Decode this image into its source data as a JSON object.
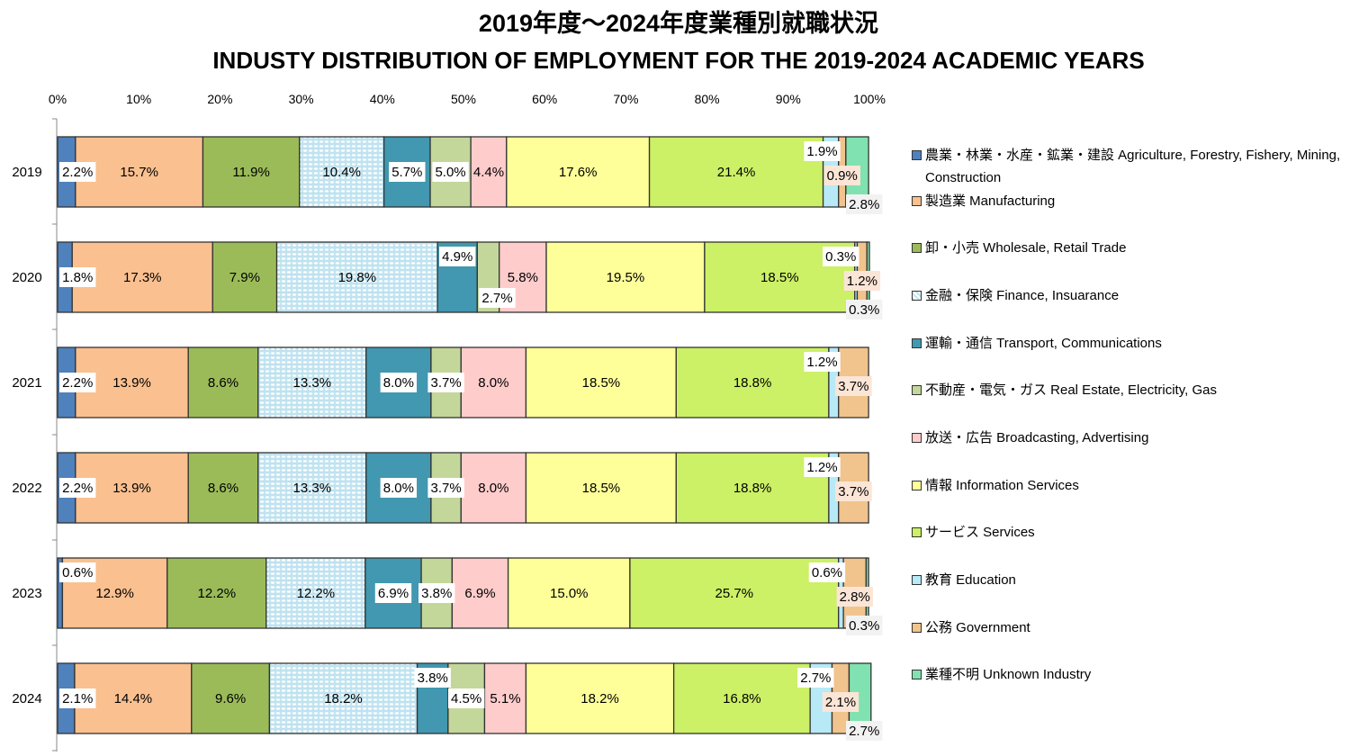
{
  "chart_data": {
    "type": "bar",
    "orientation": "horizontal-stacked-100",
    "title": "2019年度～2024年度業種別就職状況",
    "subtitle": "INDUSTY DISTRIBUTION OF EMPLOYMENT FOR THE 2019-2024 ACADEMIC YEARS",
    "xlim": [
      0,
      100
    ],
    "x_ticks": [
      "0%",
      "10%",
      "20%",
      "30%",
      "40%",
      "50%",
      "60%",
      "70%",
      "80%",
      "90%",
      "100%"
    ],
    "categories": [
      "2019",
      "2020",
      "2021",
      "2022",
      "2023",
      "2024"
    ],
    "legend_position": "right",
    "series": [
      {
        "name": "農業・林業・水産・鉱業・建設  Agriculture, Forestry, Fishery, Mining, Construction",
        "color": "#4f81bd",
        "values": [
          2.2,
          1.8,
          2.2,
          2.2,
          0.6,
          2.1
        ]
      },
      {
        "name": "製造業 Manufacturing",
        "color": "#fac090",
        "values": [
          15.7,
          17.3,
          13.9,
          13.9,
          12.9,
          14.4
        ]
      },
      {
        "name": "卸・小売 Wholesale, Retail Trade",
        "color": "#9bbb59",
        "values": [
          11.9,
          7.9,
          8.6,
          8.6,
          12.2,
          9.6
        ]
      },
      {
        "name": "金融・保険 Finance, Insuarance",
        "color": "#d4ebf5",
        "values": [
          10.4,
          19.8,
          13.3,
          13.3,
          12.2,
          18.2
        ]
      },
      {
        "name": "運輸・通信 Transport, Communications",
        "color": "#4198b0",
        "values": [
          5.7,
          4.9,
          8.0,
          8.0,
          6.9,
          3.8
        ]
      },
      {
        "name": "不動産・電気・ガス Real Estate, Electricity, Gas",
        "color": "#c4d79b",
        "values": [
          5.0,
          2.7,
          3.7,
          3.7,
          3.8,
          4.5
        ]
      },
      {
        "name": "放送・広告 Broadcasting, Advertising",
        "color": "#ffcccc",
        "values": [
          4.4,
          5.8,
          8.0,
          8.0,
          6.9,
          5.1
        ]
      },
      {
        "name": "情報 Information Services",
        "color": "#ffff99",
        "values": [
          17.6,
          19.5,
          18.5,
          18.5,
          15.0,
          18.2
        ]
      },
      {
        "name": "サービス Services",
        "color": "#ccf066",
        "values": [
          21.4,
          18.5,
          18.8,
          18.8,
          25.7,
          16.8
        ]
      },
      {
        "name": "教育 Education",
        "color": "#b7e9f7",
        "values": [
          1.9,
          0.3,
          1.2,
          1.2,
          0.6,
          2.7
        ]
      },
      {
        "name": "公務 Government",
        "color": "#f0c48c",
        "values": [
          0.9,
          1.2,
          3.7,
          3.7,
          2.8,
          2.1
        ]
      },
      {
        "name": "業種不明 Unknown Industry",
        "color": "#80e2b0",
        "values": [
          2.8,
          0.3,
          null,
          null,
          0.3,
          2.7
        ]
      }
    ]
  }
}
